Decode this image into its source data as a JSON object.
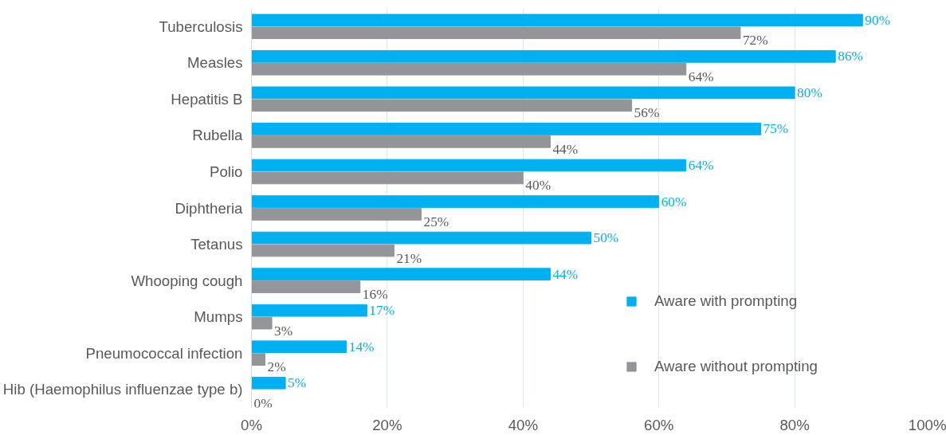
{
  "chart_data": {
    "type": "bar",
    "orientation": "horizontal",
    "categories": [
      "Tuberculosis",
      "Measles",
      "Hepatitis B",
      "Rubella",
      "Polio",
      "Diphtheria",
      "Tetanus",
      "Whooping cough",
      "Mumps",
      "Pneumococcal infection",
      "Hib (Haemophilus influenzae type b)"
    ],
    "series": [
      {
        "name": "Aware with prompting",
        "color": "#00b0f0",
        "values": [
          90,
          86,
          80,
          75,
          64,
          60,
          50,
          44,
          17,
          14,
          5
        ],
        "value_labels": [
          "90%",
          "86%",
          "80%",
          "75%",
          "64%",
          "60%",
          "50%",
          "44%",
          "17%",
          "14%",
          "5%"
        ]
      },
      {
        "name": "Aware without prompting",
        "color": "#939598",
        "values": [
          72,
          64,
          56,
          44,
          40,
          25,
          21,
          16,
          3,
          2,
          0
        ],
        "value_labels": [
          "72%",
          "64%",
          "56%",
          "44%",
          "40%",
          "25%",
          "21%",
          "16%",
          "3%",
          "2%",
          "0%"
        ]
      }
    ],
    "xlim": [
      0,
      100
    ],
    "xticks": [
      {
        "value": 0,
        "label": "0%"
      },
      {
        "value": 20,
        "label": "20%"
      },
      {
        "value": 40,
        "label": "40%"
      },
      {
        "value": 60,
        "label": "60%"
      },
      {
        "value": 80,
        "label": "80%"
      },
      {
        "value": 100,
        "label": "100%"
      }
    ],
    "grid": "x",
    "legend": "right"
  }
}
